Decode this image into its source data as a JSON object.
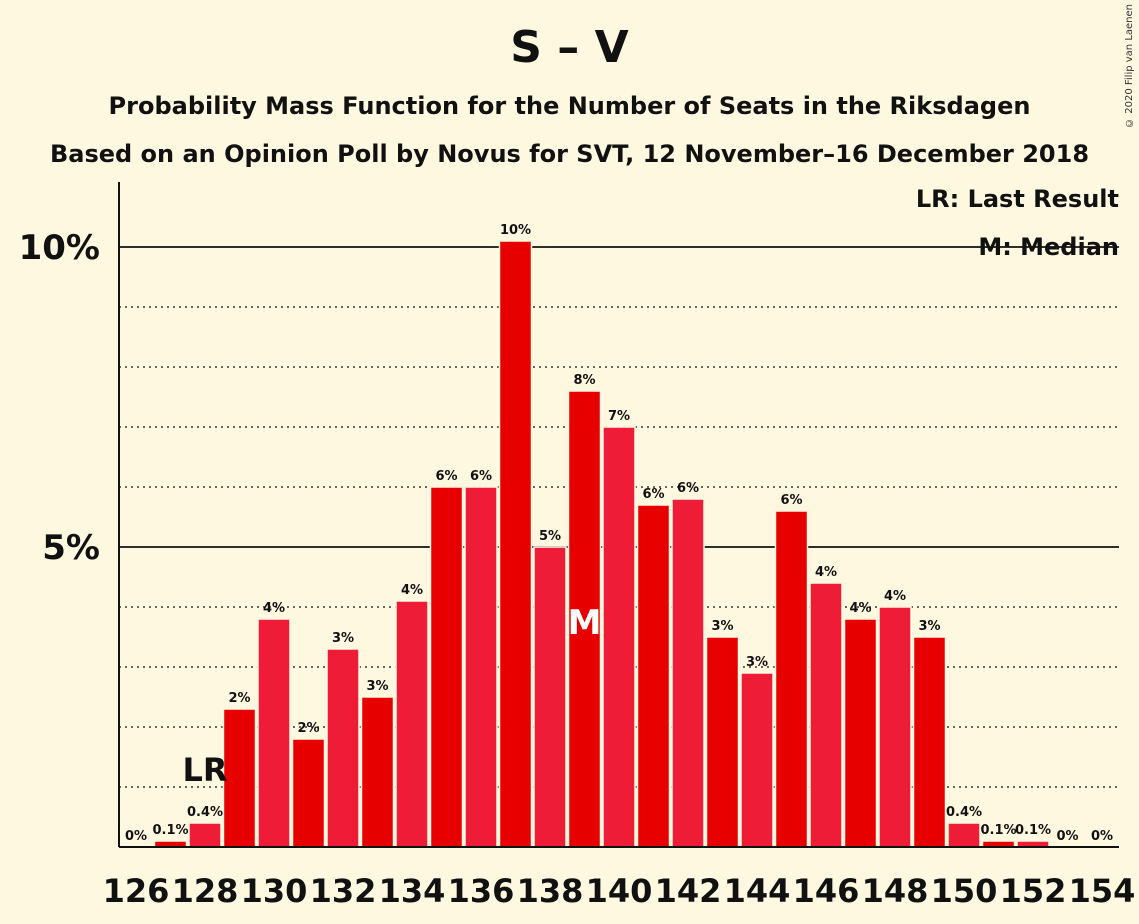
{
  "header": {
    "title": "S – V",
    "subtitle": "Probability Mass Function for the Number of Seats in the Riksdagen",
    "source": "Based on an Opinion Poll by Novus for SVT, 12 November–16 December 2018",
    "copyright": "© 2020 Filip van Laenen"
  },
  "legend": {
    "last_result": "LR: Last Result",
    "median": "M: Median"
  },
  "colors": {
    "background": "#fff8e1",
    "bar_primary": "#e60000",
    "bar_alternate": "#ee1c37",
    "text": "#111111"
  },
  "chart_data": {
    "type": "bar",
    "x": [
      126,
      127,
      128,
      129,
      130,
      131,
      132,
      133,
      134,
      135,
      136,
      137,
      138,
      139,
      140,
      141,
      142,
      143,
      144,
      145,
      146,
      147,
      148,
      149,
      150,
      151,
      152,
      153,
      154
    ],
    "values": [
      0,
      0.1,
      0.4,
      2.3,
      3.8,
      1.8,
      3.3,
      2.5,
      4.1,
      6.0,
      6.0,
      10.1,
      5.0,
      7.6,
      7.0,
      5.7,
      5.8,
      3.5,
      2.9,
      5.6,
      4.4,
      3.8,
      4.0,
      3.5,
      0.4,
      0.1,
      0.1,
      0,
      0
    ],
    "labels": [
      "0%",
      "0.1%",
      "0.4%",
      "2%",
      "4%",
      "2%",
      "3%",
      "3%",
      "4%",
      "6%",
      "6%",
      "10%",
      "5%",
      "8%",
      "7%",
      "6%",
      "6%",
      "3%",
      "3%",
      "6%",
      "4%",
      "4%",
      "4%",
      "3%",
      "0.4%",
      "0.1%",
      "0.1%",
      "0%",
      "0%"
    ],
    "x_tick_labels": [
      "126",
      "128",
      "130",
      "132",
      "134",
      "136",
      "138",
      "140",
      "142",
      "144",
      "146",
      "148",
      "150",
      "152",
      "154"
    ],
    "y_tick_labels": [
      "5%",
      "10%"
    ],
    "ylim": [
      0,
      11
    ],
    "ylabel": "",
    "xlabel": "",
    "unit": "%",
    "last_result": {
      "x": 128,
      "label": "LR"
    },
    "median": {
      "x": 139,
      "label": "M"
    },
    "grid": "dotted at 1% steps, solid at 5% and 10%"
  }
}
